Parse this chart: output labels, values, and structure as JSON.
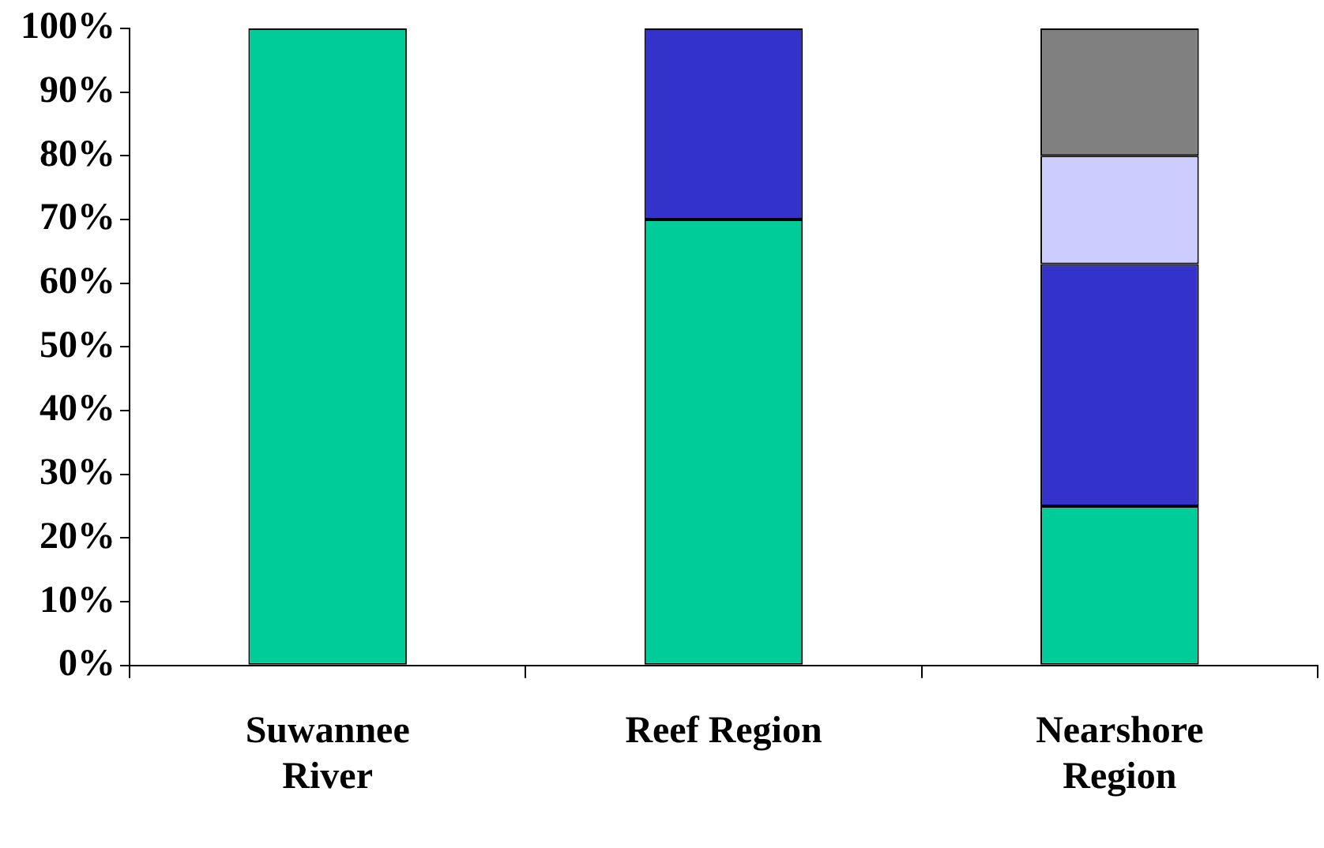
{
  "chart_data": {
    "type": "bar",
    "stacked": true,
    "categories": [
      "Suwannee River",
      "Reef Region",
      "Nearshore Region"
    ],
    "series": [
      {
        "color": "#00cc99",
        "values": [
          100,
          70,
          25
        ]
      },
      {
        "color": "#3333cc",
        "values": [
          null,
          30,
          38
        ]
      },
      {
        "color": "#ccccff",
        "values": [
          null,
          null,
          17
        ]
      },
      {
        "color": "#808080",
        "values": [
          null,
          null,
          20
        ]
      }
    ],
    "ylim": [
      0,
      100
    ],
    "yticks": [
      {
        "value": 0,
        "label": "0%"
      },
      {
        "value": 10,
        "label": "10%"
      },
      {
        "value": 20,
        "label": "20%"
      },
      {
        "value": 30,
        "label": "30%"
      },
      {
        "value": 40,
        "label": "40%"
      },
      {
        "value": 50,
        "label": "50%"
      },
      {
        "value": 60,
        "label": "60%"
      },
      {
        "value": 70,
        "label": "70%"
      },
      {
        "value": 80,
        "label": "80%"
      },
      {
        "value": 90,
        "label": "90%"
      },
      {
        "value": 100,
        "label": "100%"
      }
    ],
    "grid": false,
    "legend": false
  }
}
